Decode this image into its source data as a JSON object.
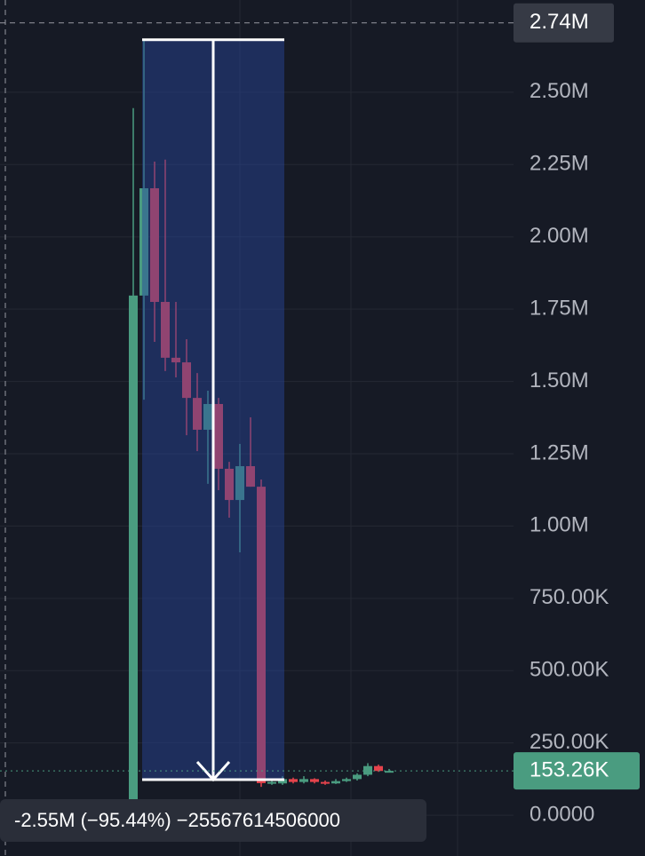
{
  "chart_data": {
    "type": "candlestick",
    "up_color": "#4a9c80",
    "down_color": "#e5434c",
    "open": [
      10000,
      1797000,
      2168000,
      1775000,
      1582000,
      1566000,
      1443000,
      1333000,
      1422000,
      1198000,
      1090000,
      1207000,
      1136000,
      110000,
      110000,
      125000,
      115000,
      125000,
      115000,
      110000,
      118000,
      125000,
      140000,
      170000,
      153000
    ],
    "high": [
      2445000,
      2680000,
      2260000,
      2267000,
      1775000,
      1646000,
      1529000,
      1468000,
      1443000,
      1222000,
      1284000,
      1376000,
      1161000,
      120000,
      135000,
      130000,
      135000,
      128000,
      120000,
      125000,
      130000,
      145000,
      180000,
      175000,
      160000
    ],
    "low": [
      0,
      1437000,
      1637000,
      1536000,
      1514000,
      1314000,
      1259000,
      1146000,
      1124000,
      1029000,
      909000,
      1136000,
      98000,
      105000,
      105000,
      110000,
      110000,
      110000,
      105000,
      108000,
      115000,
      120000,
      135000,
      150000,
      150000
    ],
    "close": [
      1797000,
      2168000,
      1775000,
      1582000,
      1566000,
      1443000,
      1333000,
      1422000,
      1198000,
      1090000,
      1207000,
      1136000,
      111000,
      115000,
      125000,
      115000,
      125000,
      115000,
      110000,
      118000,
      125000,
      140000,
      170000,
      153000,
      153260
    ],
    "ylim": [
      -141000,
      2819000
    ],
    "yticks": [
      {
        "value": 0,
        "label": "0.0000"
      },
      {
        "value": 250000,
        "label": "250.00K"
      },
      {
        "value": 500000,
        "label": "500.00K"
      },
      {
        "value": 750000,
        "label": "750.00K"
      },
      {
        "value": 1000000,
        "label": "1.00M"
      },
      {
        "value": 1250000,
        "label": "1.25M"
      },
      {
        "value": 1500000,
        "label": "1.50M"
      },
      {
        "value": 1750000,
        "label": "1.75M"
      },
      {
        "value": 2000000,
        "label": "2.00M"
      },
      {
        "value": 2250000,
        "label": "2.25M"
      },
      {
        "value": 2500000,
        "label": "2.50M"
      }
    ],
    "grid": true,
    "range_top": {
      "value": 2740000,
      "label": "2.74M"
    },
    "last_price": {
      "value": 153260,
      "label": "153.26K"
    },
    "measure_label": "-2.55M (−95.44%) −25567614506000"
  }
}
